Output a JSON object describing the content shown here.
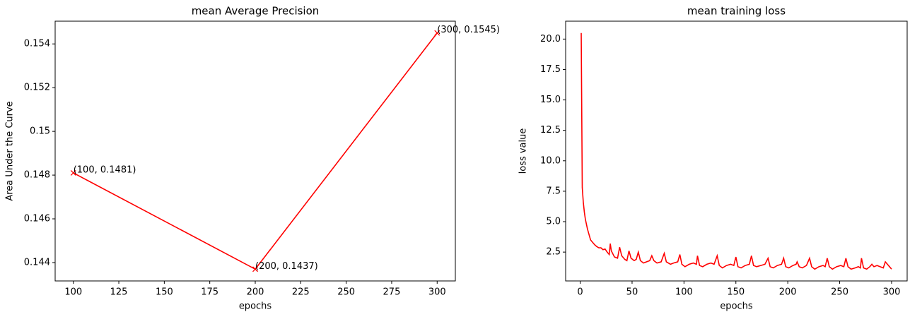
{
  "chart_data": [
    {
      "type": "line",
      "title": "mean Average Precision",
      "xlabel": "epochs",
      "ylabel": "Area Under the Curve",
      "x": [
        100,
        200,
        300
      ],
      "values": [
        0.1481,
        0.1437,
        0.1545
      ],
      "value_labels": [
        "(100, 0.1481)",
        "(200, 0.1437)",
        "(300, 0.1545)"
      ],
      "color": "#ff0000",
      "marker": "x",
      "xlim": [
        90,
        310
      ],
      "xticks": [
        100,
        125,
        150,
        175,
        200,
        225,
        250,
        275,
        300
      ],
      "ylim": [
        0.14316,
        0.15504
      ],
      "yticks": [
        0.144,
        0.146,
        0.148,
        0.15,
        0.152,
        0.154
      ],
      "grid": false
    },
    {
      "type": "line",
      "title": "mean training loss",
      "xlabel": "epochs",
      "ylabel": "loss value",
      "x": [
        1,
        2,
        3,
        4,
        5,
        6,
        7,
        8,
        9,
        10,
        12,
        14,
        16,
        18,
        20,
        22,
        24,
        26,
        28,
        29,
        30,
        33,
        36,
        38,
        40,
        43,
        45,
        47,
        49,
        52,
        54,
        56,
        58,
        61,
        64,
        67,
        69,
        71,
        74,
        78,
        81,
        83,
        87,
        90,
        94,
        96,
        98,
        101,
        105,
        109,
        112,
        113,
        115,
        118,
        122,
        126,
        129,
        132,
        134,
        137,
        141,
        145,
        148,
        150,
        152,
        155,
        159,
        163,
        165,
        167,
        170,
        174,
        178,
        181,
        183,
        186,
        190,
        194,
        196,
        198,
        201,
        205,
        208,
        209,
        211,
        214,
        218,
        221,
        223,
        226,
        230,
        234,
        236,
        238,
        240,
        243,
        247,
        251,
        254,
        256,
        258,
        261,
        265,
        268,
        270,
        271,
        273,
        276,
        279,
        281,
        283,
        286,
        289,
        292,
        294,
        296,
        298,
        300
      ],
      "values": [
        20.5,
        7.8,
        6.6,
        5.8,
        5.2,
        4.8,
        4.4,
        4.1,
        3.8,
        3.5,
        3.3,
        3.1,
        2.95,
        2.85,
        2.85,
        2.7,
        2.75,
        2.5,
        2.3,
        3.2,
        2.6,
        2.1,
        2.0,
        2.9,
        2.2,
        1.9,
        1.8,
        2.6,
        2.0,
        1.8,
        1.9,
        2.5,
        1.8,
        1.6,
        1.7,
        1.8,
        2.2,
        1.8,
        1.6,
        1.7,
        2.4,
        1.7,
        1.5,
        1.6,
        1.7,
        2.3,
        1.5,
        1.3,
        1.5,
        1.6,
        1.5,
        2.2,
        1.4,
        1.3,
        1.5,
        1.6,
        1.5,
        2.2,
        1.4,
        1.2,
        1.4,
        1.5,
        1.4,
        2.1,
        1.3,
        1.2,
        1.4,
        1.5,
        2.2,
        1.4,
        1.3,
        1.4,
        1.5,
        2.0,
        1.3,
        1.2,
        1.4,
        1.5,
        2.0,
        1.3,
        1.2,
        1.4,
        1.5,
        1.7,
        1.3,
        1.2,
        1.4,
        2.0,
        1.3,
        1.1,
        1.3,
        1.4,
        1.3,
        2.0,
        1.3,
        1.1,
        1.3,
        1.4,
        1.3,
        2.0,
        1.3,
        1.1,
        1.2,
        1.3,
        1.2,
        2.0,
        1.2,
        1.1,
        1.3,
        1.5,
        1.3,
        1.4,
        1.3,
        1.2,
        1.7,
        1.5,
        1.3,
        1.1
      ],
      "color": "#ff0000",
      "xlim": [
        -14,
        315
      ],
      "xticks": [
        0,
        50,
        100,
        150,
        200,
        250,
        300
      ],
      "ylim": [
        0.13,
        21.47
      ],
      "yticks": [
        2.5,
        {
          "value": 5,
          "label": "5.0"
        },
        7.5,
        {
          "value": 10,
          "label": "10.0"
        },
        12.5,
        {
          "value": 15,
          "label": "15.0"
        },
        17.5,
        {
          "value": 20,
          "label": "20.0"
        }
      ],
      "grid": false
    }
  ]
}
